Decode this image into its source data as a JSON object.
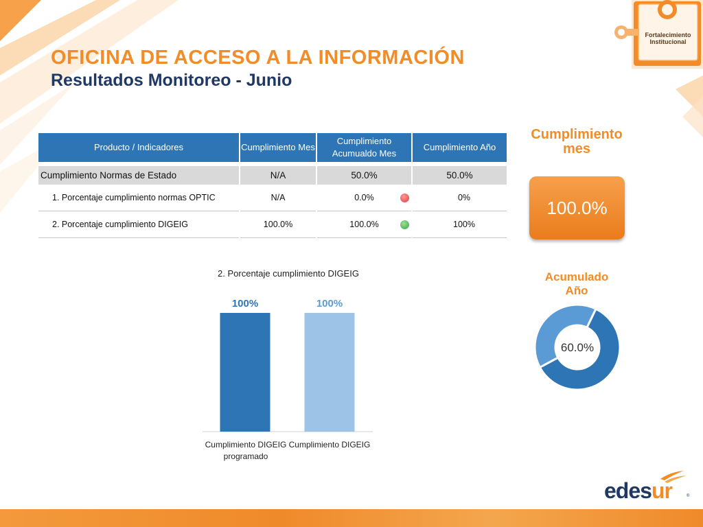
{
  "header": {
    "title": "OFICINA DE ACCESO A LA INFORMACIÓN",
    "subtitle": "Resultados Monitoreo - Junio"
  },
  "badge": {
    "line1": "Fortalecimiento",
    "line2": "Institucional"
  },
  "table": {
    "headers": [
      "Producto / Indicadores",
      "Cumplimiento Mes",
      "Cumplimiento Acumualdo Mes",
      "Cumplimiento Año"
    ],
    "group": {
      "label": "Cumplimiento Normas de Estado",
      "mes": "N/A",
      "acumulado": "50.0%",
      "anio": "50.0%"
    },
    "rows": [
      {
        "label": "1. Porcentaje cumplimiento normas OPTIC",
        "mes": "N/A",
        "acumulado": "0.0%",
        "status": "red",
        "anio": "0%"
      },
      {
        "label": "2. Porcentaje cumplimiento DIGEIG",
        "mes": "100.0%",
        "acumulado": "100.0%",
        "status": "green",
        "anio": "100%"
      }
    ]
  },
  "cumplimiento_mes": {
    "label_line1": "Cumplimiento",
    "label_line2": "mes",
    "value": "100.0%"
  },
  "acumulado_anio": {
    "label_line1": "Acumulado",
    "label_line2": "Año",
    "value": "60.0%"
  },
  "colors": {
    "accent": "#f28c28",
    "navy": "#1f3864",
    "header_blue": "#2e75b6",
    "bar1": "#2e75b6",
    "bar2": "#9dc3e6"
  },
  "chart_data": {
    "type": "bar",
    "title": "2. Porcentaje cumplimiento DIGEIG",
    "categories": [
      "Cumplimiento DIGEIG programado",
      "Cumplimiento DIGEIG"
    ],
    "category_lines": [
      [
        "Cumplimiento DIGEIG",
        "programado"
      ],
      [
        "Cumplimiento DIGEIG"
      ]
    ],
    "values": [
      100,
      100
    ],
    "value_labels": [
      "100%",
      "100%"
    ],
    "ylim": [
      0,
      100
    ],
    "grid": false
  },
  "donut_data": {
    "type": "pie",
    "values": [
      60,
      40
    ]
  },
  "logo": {
    "text_edes": "edes",
    "text_ur": "ur"
  }
}
